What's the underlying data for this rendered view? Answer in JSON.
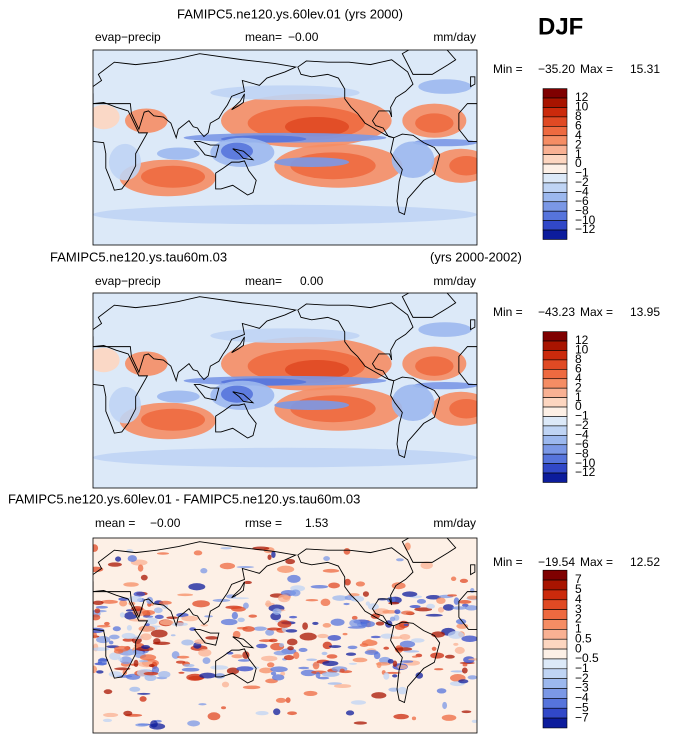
{
  "season": "DJF",
  "colorbar_colors": [
    "#7f0000",
    "#a81400",
    "#cb2a0c",
    "#e04a24",
    "#ee6a40",
    "#f58d64",
    "#f9b193",
    "#fdd6c0",
    "#fdf0e6",
    "#dce9f8",
    "#bfd4f4",
    "#9cb8ee",
    "#7b98e6",
    "#5674dc",
    "#3148c8",
    "#0c1c9c"
  ],
  "panels": [
    {
      "title": "FAMIPC5.ne120.ys.60lev.01 (yrs 2000)",
      "variable": "evap−precip",
      "mean_label": "mean=",
      "mean": "−0.00",
      "units": "mm/day",
      "min_label": "Min =",
      "min": "−35.20",
      "max_label": "Max =",
      "max": "15.31",
      "levels": [
        "12",
        "10",
        "8",
        "6",
        "4",
        "2",
        "1",
        "0",
        "−1",
        "−2",
        "−4",
        "−6",
        "−8",
        "−10",
        "−12"
      ]
    },
    {
      "title": "FAMIPC5.ne120.ys.tau60m.03",
      "years": "(yrs 2000-2002)",
      "variable": "evap−precip",
      "mean_label": "mean=",
      "mean": "0.00",
      "units": "mm/day",
      "min_label": "Min =",
      "min": "−43.23",
      "max_label": "Max =",
      "max": "13.95",
      "levels": [
        "12",
        "10",
        "8",
        "6",
        "4",
        "2",
        "1",
        "0",
        "−1",
        "−2",
        "−4",
        "−6",
        "−8",
        "−10",
        "−12"
      ]
    },
    {
      "title": "FAMIPC5.ne120.ys.60lev.01 - FAMIPC5.ne120.ys.tau60m.03",
      "mean_label": "mean =",
      "mean": "−0.00",
      "rmse_label": "rmse =",
      "rmse": "1.53",
      "units": "mm/day",
      "min_label": "Min =",
      "min": "−19.54",
      "max_label": "Max =",
      "max": "12.52",
      "levels": [
        "7",
        "5",
        "4",
        "3",
        "2",
        "1",
        "0.5",
        "0",
        "−0.5",
        "−1",
        "−2",
        "−3",
        "−4",
        "−5",
        "−7"
      ]
    }
  ]
}
